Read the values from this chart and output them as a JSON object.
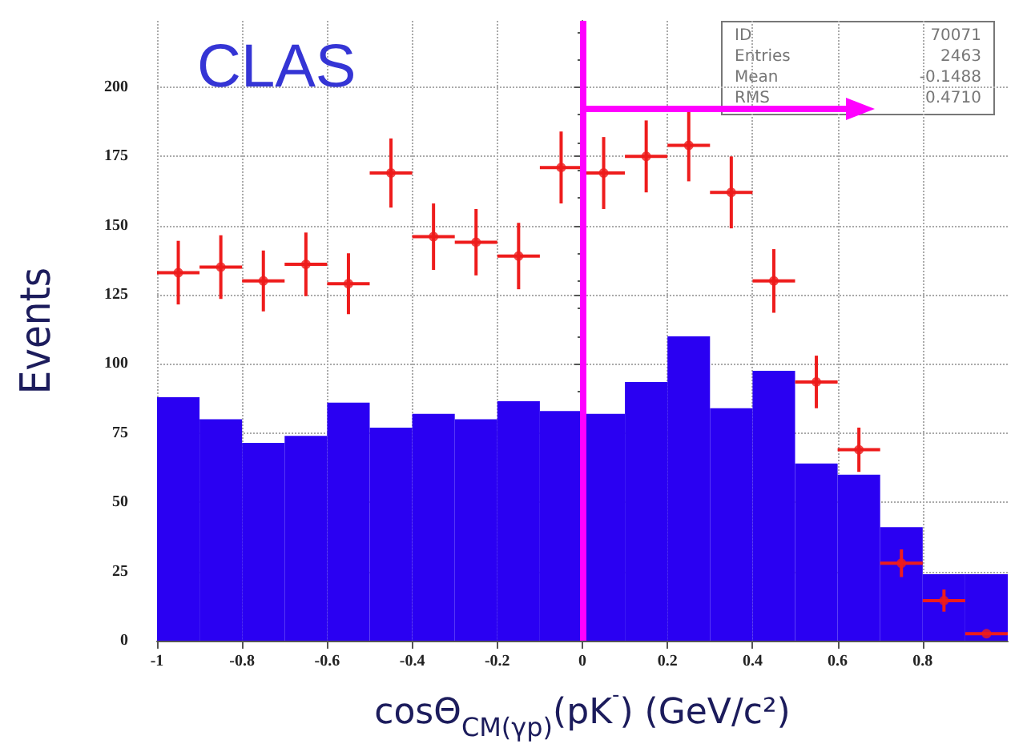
{
  "chart_data": {
    "type": "histogram",
    "title": "CLAS",
    "ylabel": "Events",
    "xlabel": "cosΘ$_{CM(γp)}$(pK$^{-}$) (GeV/c²)",
    "bins": [
      -1,
      -0.9,
      -0.8,
      -0.7,
      -0.6,
      -0.5,
      -0.4,
      -0.3,
      -0.2,
      -0.1,
      0,
      0.1,
      0.2,
      0.3,
      0.4,
      0.5,
      0.6,
      0.7,
      0.8,
      0.9,
      1
    ],
    "series": [
      {
        "color": "#2a00f2",
        "values": [
          88,
          80,
          71.5,
          74,
          86,
          77,
          82,
          80,
          86.5,
          83,
          82,
          93.5,
          110,
          84,
          97.5,
          64,
          60,
          41,
          24,
          24
        ]
      },
      {
        "type": "scatter",
        "color": "#ee1c1c",
        "x": [
          -0.95,
          -0.85,
          -0.75,
          -0.65,
          -0.55,
          -0.45,
          -0.35,
          -0.25,
          -0.15,
          -0.05,
          0.05,
          0.15,
          0.25,
          0.35,
          0.45,
          0.55,
          0.65,
          0.75,
          0.85,
          0.95
        ],
        "values": [
          133,
          135,
          130,
          136,
          129,
          169,
          146,
          144,
          139,
          171,
          169,
          175,
          179,
          162,
          130,
          93.5,
          69,
          28,
          14.5,
          2.5
        ],
        "errors": [
          11.5,
          11.5,
          11,
          11.5,
          11,
          12.5,
          12,
          12,
          12,
          13,
          13,
          13,
          13,
          13,
          11.5,
          9.5,
          8,
          5,
          4,
          null
        ],
        "xerrors": [
          0.05,
          0.05,
          0.05,
          0.05,
          0.05,
          0.05,
          0.05,
          0.05,
          0.05,
          0.05,
          0.05,
          0.05,
          0.05,
          0.05,
          0.05,
          0.05,
          0.05,
          0.05,
          0.05,
          0.05
        ]
      }
    ],
    "xlim": [
      -1,
      1
    ],
    "xticks": [
      -1,
      -0.8,
      -0.6,
      -0.4,
      -0.2,
      0,
      0.2,
      0.4,
      0.6,
      0.8
    ],
    "ylim": [
      0,
      224
    ],
    "yticks": [
      0,
      25,
      50,
      75,
      100,
      125,
      150,
      175,
      200
    ],
    "grid": true,
    "marker": "circle",
    "ref_lines": [
      {
        "axis": "x",
        "value": 0,
        "color": "#ff00ff"
      }
    ],
    "annotations": [
      "ID 70071",
      "Entries 2463",
      "Mean -0.1488",
      "RMS 0.4710"
    ]
  }
}
